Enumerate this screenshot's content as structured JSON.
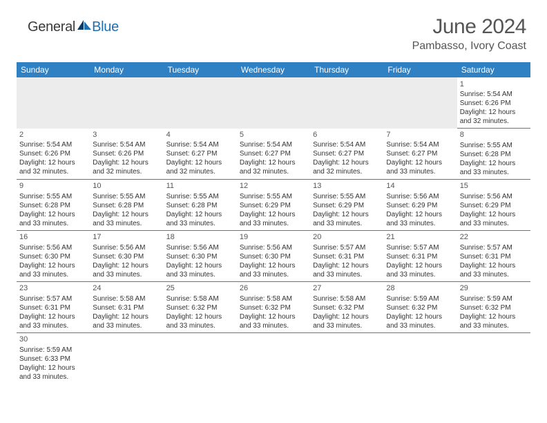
{
  "header": {
    "logo_general": "General",
    "logo_blue": "Blue",
    "title": "June 2024",
    "location": "Pambasso, Ivory Coast"
  },
  "colors": {
    "header_bg": "#3080c4",
    "header_text": "#ffffff",
    "cell_border": "#3080c4",
    "empty_bg": "#ececec",
    "text": "#333333",
    "title_text": "#555555",
    "logo_dark": "#3a3a3a",
    "logo_blue": "#1f6fb2"
  },
  "weekdays": [
    "Sunday",
    "Monday",
    "Tuesday",
    "Wednesday",
    "Thursday",
    "Friday",
    "Saturday"
  ],
  "layout": {
    "first_day_col": 6,
    "days_in_month": 30,
    "rows": 6,
    "cols": 7
  },
  "days": {
    "1": {
      "sunrise": "5:54 AM",
      "sunset": "6:26 PM",
      "daylight": "12 hours and 32 minutes."
    },
    "2": {
      "sunrise": "5:54 AM",
      "sunset": "6:26 PM",
      "daylight": "12 hours and 32 minutes."
    },
    "3": {
      "sunrise": "5:54 AM",
      "sunset": "6:26 PM",
      "daylight": "12 hours and 32 minutes."
    },
    "4": {
      "sunrise": "5:54 AM",
      "sunset": "6:27 PM",
      "daylight": "12 hours and 32 minutes."
    },
    "5": {
      "sunrise": "5:54 AM",
      "sunset": "6:27 PM",
      "daylight": "12 hours and 32 minutes."
    },
    "6": {
      "sunrise": "5:54 AM",
      "sunset": "6:27 PM",
      "daylight": "12 hours and 32 minutes."
    },
    "7": {
      "sunrise": "5:54 AM",
      "sunset": "6:27 PM",
      "daylight": "12 hours and 33 minutes."
    },
    "8": {
      "sunrise": "5:55 AM",
      "sunset": "6:28 PM",
      "daylight": "12 hours and 33 minutes."
    },
    "9": {
      "sunrise": "5:55 AM",
      "sunset": "6:28 PM",
      "daylight": "12 hours and 33 minutes."
    },
    "10": {
      "sunrise": "5:55 AM",
      "sunset": "6:28 PM",
      "daylight": "12 hours and 33 minutes."
    },
    "11": {
      "sunrise": "5:55 AM",
      "sunset": "6:28 PM",
      "daylight": "12 hours and 33 minutes."
    },
    "12": {
      "sunrise": "5:55 AM",
      "sunset": "6:29 PM",
      "daylight": "12 hours and 33 minutes."
    },
    "13": {
      "sunrise": "5:55 AM",
      "sunset": "6:29 PM",
      "daylight": "12 hours and 33 minutes."
    },
    "14": {
      "sunrise": "5:56 AM",
      "sunset": "6:29 PM",
      "daylight": "12 hours and 33 minutes."
    },
    "15": {
      "sunrise": "5:56 AM",
      "sunset": "6:29 PM",
      "daylight": "12 hours and 33 minutes."
    },
    "16": {
      "sunrise": "5:56 AM",
      "sunset": "6:30 PM",
      "daylight": "12 hours and 33 minutes."
    },
    "17": {
      "sunrise": "5:56 AM",
      "sunset": "6:30 PM",
      "daylight": "12 hours and 33 minutes."
    },
    "18": {
      "sunrise": "5:56 AM",
      "sunset": "6:30 PM",
      "daylight": "12 hours and 33 minutes."
    },
    "19": {
      "sunrise": "5:56 AM",
      "sunset": "6:30 PM",
      "daylight": "12 hours and 33 minutes."
    },
    "20": {
      "sunrise": "5:57 AM",
      "sunset": "6:31 PM",
      "daylight": "12 hours and 33 minutes."
    },
    "21": {
      "sunrise": "5:57 AM",
      "sunset": "6:31 PM",
      "daylight": "12 hours and 33 minutes."
    },
    "22": {
      "sunrise": "5:57 AM",
      "sunset": "6:31 PM",
      "daylight": "12 hours and 33 minutes."
    },
    "23": {
      "sunrise": "5:57 AM",
      "sunset": "6:31 PM",
      "daylight": "12 hours and 33 minutes."
    },
    "24": {
      "sunrise": "5:58 AM",
      "sunset": "6:31 PM",
      "daylight": "12 hours and 33 minutes."
    },
    "25": {
      "sunrise": "5:58 AM",
      "sunset": "6:32 PM",
      "daylight": "12 hours and 33 minutes."
    },
    "26": {
      "sunrise": "5:58 AM",
      "sunset": "6:32 PM",
      "daylight": "12 hours and 33 minutes."
    },
    "27": {
      "sunrise": "5:58 AM",
      "sunset": "6:32 PM",
      "daylight": "12 hours and 33 minutes."
    },
    "28": {
      "sunrise": "5:59 AM",
      "sunset": "6:32 PM",
      "daylight": "12 hours and 33 minutes."
    },
    "29": {
      "sunrise": "5:59 AM",
      "sunset": "6:32 PM",
      "daylight": "12 hours and 33 minutes."
    },
    "30": {
      "sunrise": "5:59 AM",
      "sunset": "6:33 PM",
      "daylight": "12 hours and 33 minutes."
    }
  },
  "labels": {
    "sunrise": "Sunrise: ",
    "sunset": "Sunset: ",
    "daylight": "Daylight: "
  }
}
